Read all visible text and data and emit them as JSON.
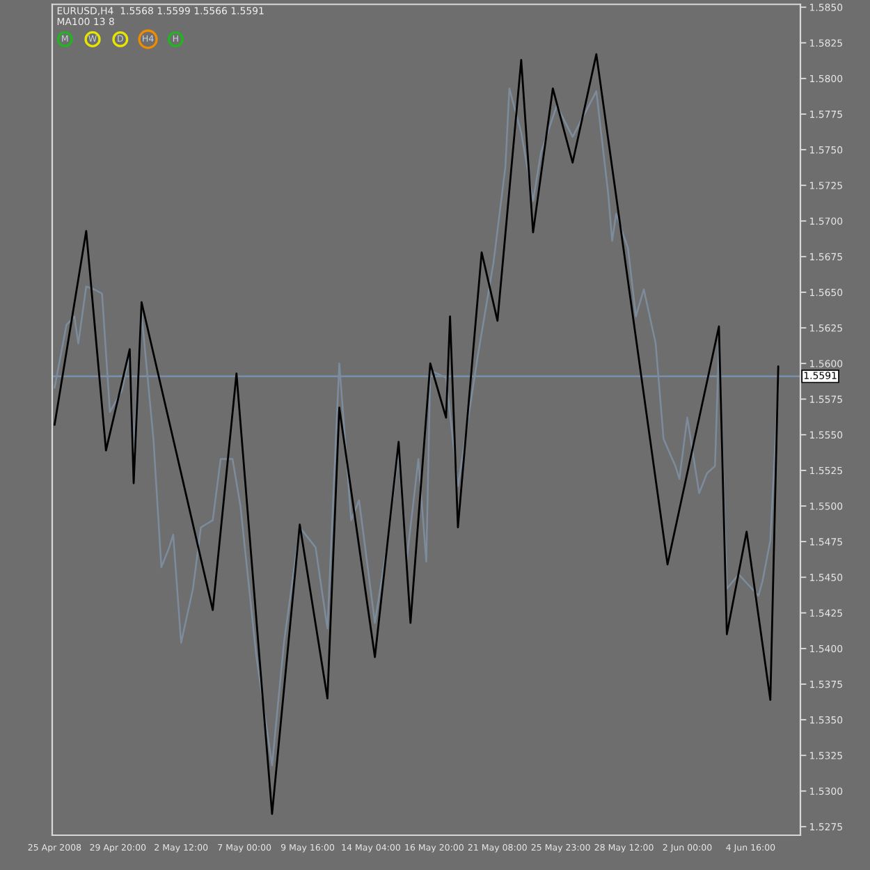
{
  "chart_data": {
    "type": "line",
    "title": "EURUSD,H4  1.5568 1.5599 1.5566 1.5591",
    "subtitle": "MA100 13 8",
    "annotations": [
      "M",
      "W",
      "D",
      "H4",
      "H"
    ],
    "categories": [
      "25 Apr 2008",
      null,
      null,
      null,
      null,
      null,
      null,
      null,
      null,
      null,
      null,
      null,
      null,
      null,
      null,
      null,
      "29 Apr 20:00",
      null,
      null,
      null,
      null,
      null,
      null,
      null,
      null,
      null,
      null,
      null,
      null,
      null,
      null,
      null,
      "2 May 12:00",
      null,
      null,
      null,
      null,
      null,
      null,
      null,
      null,
      null,
      null,
      null,
      null,
      null,
      null,
      null,
      "7 May 00:00",
      null,
      null,
      null,
      null,
      null,
      null,
      null,
      null,
      null,
      null,
      null,
      null,
      null,
      null,
      null,
      "9 May 16:00",
      null,
      null,
      null,
      null,
      null,
      null,
      null,
      null,
      null,
      null,
      null,
      null,
      null,
      null,
      null,
      "14 May 04:00",
      null,
      null,
      null,
      null,
      null,
      null,
      null,
      null,
      null,
      null,
      null,
      null,
      null,
      null,
      null,
      "16 May 20:00",
      null,
      null,
      null,
      null,
      null,
      null,
      null,
      null,
      null,
      null,
      null,
      null,
      null,
      null,
      null,
      "21 May 08:00",
      null,
      null,
      null,
      null,
      null,
      null,
      null,
      null,
      null,
      null,
      null,
      null,
      null,
      null,
      null,
      "25 May 23:00",
      null,
      null,
      null,
      null,
      null,
      null,
      null,
      null,
      null,
      null,
      null,
      null,
      null,
      null,
      null,
      "28 May 12:00",
      null,
      null,
      null,
      null,
      null,
      null,
      null,
      null,
      null,
      null,
      null,
      null,
      null,
      null,
      null,
      "2 Jun 00:00",
      null,
      null,
      null,
      null,
      null,
      null,
      null,
      null,
      null,
      null,
      null,
      null,
      null,
      null,
      null,
      "4 Jun 16:00",
      null,
      null,
      null,
      null,
      null,
      null,
      null,
      null,
      null,
      null,
      null,
      null
    ],
    "series": [
      {
        "color": "#7d8c9c",
        "values": [
          1.5583,
          null,
          null,
          1.5627,
          null,
          1.5633,
          1.5614,
          null,
          1.5654,
          null,
          1.5652,
          null,
          1.5649,
          null,
          1.5566,
          null,
          null,
          1.5581,
          null,
          1.5606,
          1.5538,
          null,
          1.5635,
          null,
          null,
          1.5547,
          null,
          1.5457,
          null,
          1.5471,
          1.548,
          null,
          1.5404,
          null,
          null,
          1.5442,
          null,
          1.5485,
          null,
          null,
          1.549,
          null,
          1.5533,
          null,
          null,
          1.5533,
          null,
          1.55,
          null,
          null,
          null,
          1.5395,
          null,
          null,
          null,
          1.5318,
          null,
          null,
          1.5404,
          null,
          null,
          null,
          1.5485,
          null,
          null,
          null,
          1.5471,
          null,
          null,
          1.5414,
          null,
          null,
          1.56,
          null,
          null,
          1.549,
          null,
          1.5504,
          null,
          null,
          null,
          1.5418,
          null,
          null,
          1.5471,
          null,
          null,
          1.5538,
          null,
          1.5461,
          null,
          null,
          1.5533,
          null,
          1.5461,
          1.5595,
          null,
          null,
          null,
          1.559,
          null,
          null,
          1.5514,
          null,
          null,
          null,
          null,
          1.5605,
          null,
          null,
          null,
          1.5671,
          null,
          null,
          1.5738,
          1.5793,
          null,
          null,
          1.5762,
          null,
          null,
          1.5714,
          null,
          1.5748,
          null,
          null,
          null,
          1.5781,
          null,
          null,
          null,
          1.5759,
          null,
          null,
          null,
          null,
          null,
          1.5791,
          null,
          null,
          1.5719,
          1.5686,
          1.5705,
          null,
          null,
          1.5681,
          null,
          1.5633,
          null,
          1.5652,
          null,
          null,
          1.5614,
          null,
          1.5547,
          null,
          null,
          1.5528,
          1.5519,
          null,
          1.5562,
          null,
          null,
          1.5509,
          null,
          1.5523,
          null,
          1.5528,
          1.5614,
          null,
          1.5442,
          null,
          null,
          1.5452,
          null,
          null,
          null,
          null,
          1.5437,
          1.5447,
          null,
          1.5476,
          null,
          1.5585,
          null,
          null,
          null,
          null,
          null
        ]
      },
      {
        "color": "#000000",
        "values": [
          1.5557,
          null,
          null,
          null,
          null,
          null,
          null,
          null,
          1.5693,
          null,
          null,
          null,
          null,
          1.5539,
          null,
          null,
          null,
          null,
          null,
          1.561,
          1.5516,
          null,
          1.5643,
          null,
          null,
          null,
          null,
          null,
          null,
          null,
          null,
          null,
          null,
          null,
          null,
          null,
          null,
          null,
          null,
          null,
          1.5427,
          null,
          null,
          null,
          null,
          null,
          1.5593,
          null,
          null,
          null,
          null,
          null,
          null,
          null,
          null,
          1.5284,
          null,
          null,
          null,
          null,
          null,
          null,
          1.5487,
          null,
          null,
          null,
          null,
          null,
          null,
          1.5365,
          null,
          null,
          1.5569,
          null,
          null,
          null,
          null,
          null,
          null,
          null,
          null,
          1.5394,
          null,
          null,
          null,
          null,
          null,
          1.5545,
          null,
          null,
          1.5418,
          null,
          null,
          null,
          null,
          1.56,
          null,
          null,
          null,
          1.5562,
          1.5633,
          null,
          1.5485,
          null,
          null,
          null,
          null,
          null,
          1.5678,
          null,
          null,
          null,
          1.563,
          null,
          null,
          null,
          null,
          null,
          1.5813,
          null,
          null,
          1.5692,
          null,
          null,
          null,
          null,
          1.5793,
          null,
          null,
          null,
          null,
          1.5741,
          null,
          null,
          null,
          null,
          null,
          1.5817,
          null,
          null,
          null,
          null,
          null,
          null,
          null,
          null,
          null,
          null,
          null,
          null,
          null,
          null,
          null,
          null,
          null,
          1.5459,
          null,
          null,
          null,
          null,
          null,
          null,
          null,
          null,
          null,
          null,
          null,
          null,
          1.5626,
          null,
          1.541,
          null,
          null,
          null,
          null,
          1.5482,
          null,
          null,
          null,
          null,
          null,
          1.5364,
          null,
          1.5598,
          null,
          null,
          null,
          null,
          null
        ]
      }
    ],
    "ylim": [
      1.5269,
      1.5852
    ],
    "yticks": [
      {
        "value": 1.5275,
        "label": "1.5275"
      },
      {
        "value": 1.53,
        "label": "1.5300"
      },
      {
        "value": 1.5325,
        "label": "1.5325"
      },
      {
        "value": 1.535,
        "label": "1.5350"
      },
      {
        "value": 1.5375,
        "label": "1.5375"
      },
      {
        "value": 1.54,
        "label": "1.5400"
      },
      {
        "value": 1.5425,
        "label": "1.5425"
      },
      {
        "value": 1.545,
        "label": "1.5450"
      },
      {
        "value": 1.5475,
        "label": "1.5475"
      },
      {
        "value": 1.55,
        "label": "1.5500"
      },
      {
        "value": 1.5525,
        "label": "1.5525"
      },
      {
        "value": 1.555,
        "label": "1.5550"
      },
      {
        "value": 1.5575,
        "label": "1.5575"
      },
      {
        "value": 1.56,
        "label": "1.5600"
      },
      {
        "value": 1.5625,
        "label": "1.5625"
      },
      {
        "value": 1.565,
        "label": "1.5650"
      },
      {
        "value": 1.5675,
        "label": "1.5675"
      },
      {
        "value": 1.57,
        "label": "1.5700"
      },
      {
        "value": 1.5725,
        "label": "1.5725"
      },
      {
        "value": 1.575,
        "label": "1.5750"
      },
      {
        "value": 1.5775,
        "label": "1.5775"
      },
      {
        "value": 1.58,
        "label": "1.5800"
      },
      {
        "value": 1.5825,
        "label": "1.5825"
      },
      {
        "value": 1.585,
        "label": "1.5850"
      }
    ],
    "ref_lines": [
      {
        "axis": "y",
        "value": 1.5591,
        "label": "1.5591",
        "color": "#7896b4"
      }
    ],
    "grid": false,
    "legend": false,
    "marker": "none",
    "line_style": "solid"
  }
}
